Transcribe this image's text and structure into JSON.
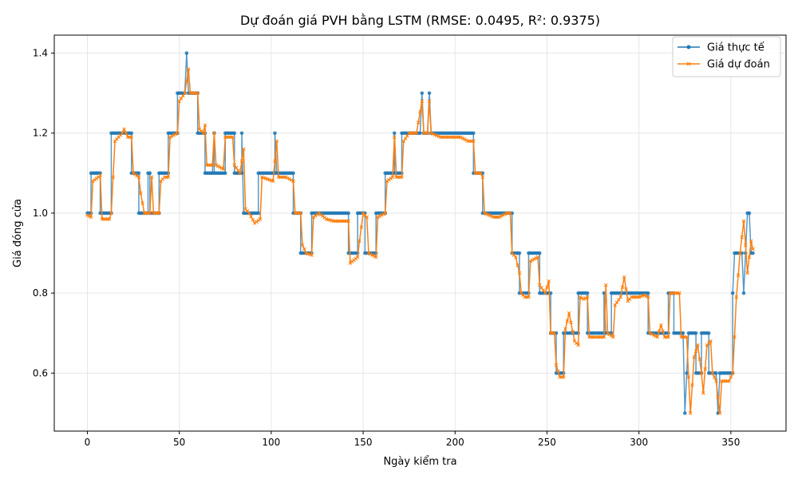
{
  "chart_data": {
    "type": "line",
    "title": "Dự đoán giá PVH bằng LSTM (RMSE: 0.0495, R²: 0.9375)",
    "xlabel": "Ngày kiểm tra",
    "ylabel": "Giá đóng cửa",
    "xlim": [
      -18,
      380
    ],
    "ylim": [
      0.455,
      1.445
    ],
    "xticks": [
      0,
      50,
      100,
      150,
      200,
      250,
      300,
      350
    ],
    "yticks": [
      0.6,
      0.8,
      1.0,
      1.2,
      1.4
    ],
    "ytick_labels": [
      "0.6",
      "0.8",
      "1.0",
      "1.2",
      "1.4"
    ],
    "grid": true,
    "legend_position": "top-right",
    "series": [
      {
        "name": "Giá thực tế",
        "color": "#1f77b4",
        "marker": "circle",
        "segments": [
          [
            0,
            1.0
          ],
          [
            2,
            1.0
          ],
          [
            2,
            1.1
          ],
          [
            7,
            1.1
          ],
          [
            7,
            1.0
          ],
          [
            13,
            1.0
          ],
          [
            13,
            1.2
          ],
          [
            24,
            1.2
          ],
          [
            24,
            1.1
          ],
          [
            28,
            1.1
          ],
          [
            28,
            1.0
          ],
          [
            33,
            1.0
          ],
          [
            33,
            1.1
          ],
          [
            34,
            1.1
          ],
          [
            34,
            1.0
          ],
          [
            39,
            1.0
          ],
          [
            39,
            1.1
          ],
          [
            44,
            1.1
          ],
          [
            44,
            1.2
          ],
          [
            49,
            1.2
          ],
          [
            49,
            1.3
          ],
          [
            53,
            1.3
          ],
          [
            54,
            1.4
          ],
          [
            55,
            1.3
          ],
          [
            60,
            1.3
          ],
          [
            60,
            1.2
          ],
          [
            64,
            1.2
          ],
          [
            64,
            1.1
          ],
          [
            68,
            1.1
          ],
          [
            69,
            1.2
          ],
          [
            69,
            1.1
          ],
          [
            75,
            1.1
          ],
          [
            75,
            1.2
          ],
          [
            80,
            1.2
          ],
          [
            80,
            1.1
          ],
          [
            84,
            1.1
          ],
          [
            84,
            1.2
          ],
          [
            85,
            1.0
          ],
          [
            93,
            1.0
          ],
          [
            93,
            1.1
          ],
          [
            102,
            1.1
          ],
          [
            102,
            1.2
          ],
          [
            103,
            1.1
          ],
          [
            112,
            1.1
          ],
          [
            112,
            1.0
          ],
          [
            116,
            1.0
          ],
          [
            116,
            0.9
          ],
          [
            122,
            0.9
          ],
          [
            122,
            1.0
          ],
          [
            142,
            1.0
          ],
          [
            142,
            0.9
          ],
          [
            147,
            0.9
          ],
          [
            147,
            1.0
          ],
          [
            151,
            1.0
          ],
          [
            151,
            0.9
          ],
          [
            157,
            0.9
          ],
          [
            157,
            1.0
          ],
          [
            162,
            1.0
          ],
          [
            162,
            1.1
          ],
          [
            167,
            1.1
          ],
          [
            167,
            1.2
          ],
          [
            168,
            1.1
          ],
          [
            171,
            1.1
          ],
          [
            171,
            1.2
          ],
          [
            181,
            1.2
          ],
          [
            182,
            1.3
          ],
          [
            183,
            1.2
          ],
          [
            185,
            1.2
          ],
          [
            186,
            1.3
          ],
          [
            187,
            1.2
          ],
          [
            210,
            1.2
          ],
          [
            210,
            1.1
          ],
          [
            215,
            1.1
          ],
          [
            215,
            1.0
          ],
          [
            231,
            1.0
          ],
          [
            231,
            0.9
          ],
          [
            235,
            0.9
          ],
          [
            235,
            0.8
          ],
          [
            240,
            0.8
          ],
          [
            240,
            0.9
          ],
          [
            246,
            0.9
          ],
          [
            246,
            0.8
          ],
          [
            252,
            0.8
          ],
          [
            252,
            0.7
          ],
          [
            255,
            0.7
          ],
          [
            255,
            0.6
          ],
          [
            259,
            0.6
          ],
          [
            259,
            0.7
          ],
          [
            267,
            0.7
          ],
          [
            267,
            0.8
          ],
          [
            272,
            0.8
          ],
          [
            272,
            0.7
          ],
          [
            281,
            0.7
          ],
          [
            281,
            0.8
          ],
          [
            282,
            0.7
          ],
          [
            285,
            0.7
          ],
          [
            285,
            0.8
          ],
          [
            305,
            0.8
          ],
          [
            305,
            0.7
          ],
          [
            316,
            0.7
          ],
          [
            316,
            0.8
          ],
          [
            319,
            0.8
          ],
          [
            319,
            0.7
          ],
          [
            324,
            0.7
          ],
          [
            325,
            0.5
          ],
          [
            327,
            0.7
          ],
          [
            331,
            0.7
          ],
          [
            331,
            0.6
          ],
          [
            334,
            0.6
          ],
          [
            334,
            0.7
          ],
          [
            338,
            0.7
          ],
          [
            338,
            0.6
          ],
          [
            342,
            0.6
          ],
          [
            343,
            0.5
          ],
          [
            344,
            0.6
          ],
          [
            351,
            0.6
          ],
          [
            351,
            0.8
          ],
          [
            352,
            0.9
          ],
          [
            356,
            0.9
          ],
          [
            357,
            0.8
          ],
          [
            358,
            0.9
          ],
          [
            359,
            1.0
          ],
          [
            360,
            1.0
          ],
          [
            361,
            0.9
          ],
          [
            362,
            0.9
          ]
        ]
      },
      {
        "name": "Giá dự đoán",
        "color": "#ff7f0e",
        "marker": "x",
        "segments": [
          [
            0,
            0.995
          ],
          [
            2,
            0.99
          ],
          [
            3,
            1.08
          ],
          [
            6,
            1.09
          ],
          [
            7,
            1.095
          ],
          [
            8,
            0.985
          ],
          [
            12,
            0.985
          ],
          [
            13,
            1.0
          ],
          [
            14,
            1.09
          ],
          [
            15,
            1.18
          ],
          [
            17,
            1.19
          ],
          [
            19,
            1.2
          ],
          [
            20,
            1.21
          ],
          [
            22,
            1.19
          ],
          [
            24,
            1.19
          ],
          [
            25,
            1.1
          ],
          [
            28,
            1.09
          ],
          [
            29,
            1.05
          ],
          [
            31,
            1.0
          ],
          [
            34,
            1.0
          ],
          [
            35,
            1.09
          ],
          [
            36,
            1.0
          ],
          [
            39,
            1.0
          ],
          [
            40,
            1.08
          ],
          [
            42,
            1.09
          ],
          [
            44,
            1.09
          ],
          [
            45,
            1.19
          ],
          [
            49,
            1.2
          ],
          [
            50,
            1.28
          ],
          [
            53,
            1.3
          ],
          [
            55,
            1.36
          ],
          [
            56,
            1.3
          ],
          [
            58,
            1.3
          ],
          [
            60,
            1.3
          ],
          [
            61,
            1.21
          ],
          [
            63,
            1.2
          ],
          [
            64,
            1.22
          ],
          [
            65,
            1.12
          ],
          [
            68,
            1.12
          ],
          [
            69,
            1.2
          ],
          [
            70,
            1.12
          ],
          [
            74,
            1.11
          ],
          [
            75,
            1.19
          ],
          [
            79,
            1.19
          ],
          [
            80,
            1.12
          ],
          [
            83,
            1.1
          ],
          [
            85,
            1.16
          ],
          [
            86,
            1.01
          ],
          [
            88,
            1.0
          ],
          [
            91,
            0.975
          ],
          [
            94,
            0.985
          ],
          [
            95,
            1.09
          ],
          [
            101,
            1.08
          ],
          [
            103,
            1.18
          ],
          [
            104,
            1.09
          ],
          [
            108,
            1.09
          ],
          [
            112,
            1.08
          ],
          [
            113,
            1.0
          ],
          [
            116,
            1.0
          ],
          [
            117,
            0.92
          ],
          [
            119,
            0.9
          ],
          [
            122,
            0.895
          ],
          [
            123,
            0.99
          ],
          [
            126,
            1.0
          ],
          [
            130,
            0.985
          ],
          [
            134,
            0.98
          ],
          [
            140,
            0.98
          ],
          [
            142,
            0.98
          ],
          [
            143,
            0.875
          ],
          [
            147,
            0.89
          ],
          [
            148,
            0.93
          ],
          [
            150,
            1.0
          ],
          [
            152,
            0.99
          ],
          [
            153,
            0.9
          ],
          [
            155,
            0.895
          ],
          [
            157,
            0.89
          ],
          [
            158,
            0.99
          ],
          [
            162,
            1.0
          ],
          [
            163,
            1.08
          ],
          [
            166,
            1.09
          ],
          [
            167,
            1.19
          ],
          [
            168,
            1.09
          ],
          [
            171,
            1.09
          ],
          [
            172,
            1.18
          ],
          [
            175,
            1.2
          ],
          [
            179,
            1.2
          ],
          [
            182,
            1.28
          ],
          [
            183,
            1.2
          ],
          [
            185,
            1.2
          ],
          [
            186,
            1.28
          ],
          [
            187,
            1.2
          ],
          [
            192,
            1.19
          ],
          [
            195,
            1.19
          ],
          [
            199,
            1.19
          ],
          [
            203,
            1.19
          ],
          [
            207,
            1.18
          ],
          [
            210,
            1.18
          ],
          [
            211,
            1.1
          ],
          [
            214,
            1.1
          ],
          [
            215,
            1.09
          ],
          [
            216,
            1.0
          ],
          [
            221,
            0.99
          ],
          [
            224,
            0.99
          ],
          [
            228,
            1.0
          ],
          [
            230,
            1.0
          ],
          [
            231,
            0.9
          ],
          [
            233,
            0.89
          ],
          [
            235,
            0.85
          ],
          [
            236,
            0.8
          ],
          [
            238,
            0.79
          ],
          [
            240,
            0.79
          ],
          [
            241,
            0.88
          ],
          [
            245,
            0.89
          ],
          [
            246,
            0.82
          ],
          [
            249,
            0.8
          ],
          [
            251,
            0.83
          ],
          [
            252,
            0.7
          ],
          [
            254,
            0.7
          ],
          [
            255,
            0.62
          ],
          [
            257,
            0.59
          ],
          [
            259,
            0.59
          ],
          [
            260,
            0.71
          ],
          [
            262,
            0.75
          ],
          [
            265,
            0.68
          ],
          [
            267,
            0.67
          ],
          [
            268,
            0.79
          ],
          [
            270,
            0.785
          ],
          [
            272,
            0.79
          ],
          [
            273,
            0.69
          ],
          [
            278,
            0.69
          ],
          [
            281,
            0.69
          ],
          [
            282,
            0.82
          ],
          [
            283,
            0.7
          ],
          [
            286,
            0.69
          ],
          [
            287,
            0.77
          ],
          [
            290,
            0.79
          ],
          [
            292,
            0.84
          ],
          [
            294,
            0.78
          ],
          [
            296,
            0.79
          ],
          [
            300,
            0.79
          ],
          [
            303,
            0.795
          ],
          [
            305,
            0.79
          ],
          [
            306,
            0.7
          ],
          [
            310,
            0.69
          ],
          [
            312,
            0.72
          ],
          [
            314,
            0.69
          ],
          [
            316,
            0.69
          ],
          [
            317,
            0.8
          ],
          [
            322,
            0.8
          ],
          [
            323,
            0.69
          ],
          [
            326,
            0.69
          ],
          [
            327,
            0.59
          ],
          [
            328,
            0.5
          ],
          [
            330,
            0.64
          ],
          [
            332,
            0.67
          ],
          [
            334,
            0.6
          ],
          [
            335,
            0.55
          ],
          [
            337,
            0.67
          ],
          [
            339,
            0.68
          ],
          [
            340,
            0.6
          ],
          [
            342,
            0.58
          ],
          [
            344,
            0.5
          ],
          [
            345,
            0.58
          ],
          [
            349,
            0.58
          ],
          [
            351,
            0.6
          ],
          [
            352,
            0.69
          ],
          [
            353,
            0.79
          ],
          [
            355,
            0.9
          ],
          [
            357,
            0.98
          ],
          [
            358,
            0.92
          ],
          [
            359,
            0.85
          ],
          [
            361,
            0.93
          ],
          [
            362,
            0.91
          ]
        ]
      }
    ]
  }
}
